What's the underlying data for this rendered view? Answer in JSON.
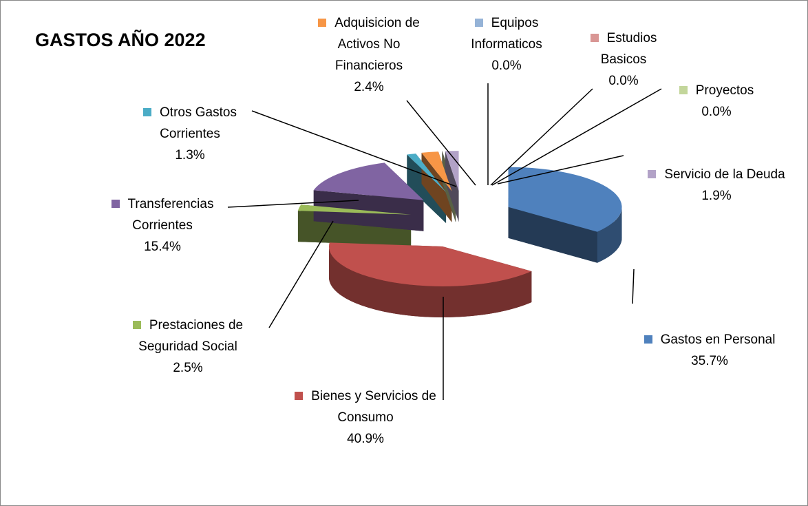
{
  "chart_data": {
    "type": "pie",
    "title": "GASTOS AÑO 2022",
    "categories": [
      "Gastos en Personal",
      "Bienes y Servicios de Consumo",
      "Prestaciones de Seguridad Social",
      "Transferencias Corrientes",
      "Otros Gastos Corrientes",
      "Adquisicion de Activos No Financieros",
      "Equipos Informaticos",
      "Estudios Basicos",
      "Proyectos",
      "Servicio de la Deuda"
    ],
    "values": [
      35.7,
      40.9,
      2.5,
      15.4,
      1.3,
      2.4,
      0.0,
      0.0,
      0.0,
      1.9
    ],
    "value_labels": [
      "35.7%",
      "40.9%",
      "2.5%",
      "15.4%",
      "1.3%",
      "2.4%",
      "0.0%",
      "0.0%",
      "0.0%",
      "1.9%"
    ],
    "colors": [
      "#4f81bd",
      "#c0504d",
      "#9bbb59",
      "#8064a2",
      "#4bacc6",
      "#f79646",
      "#95b3d7",
      "#d99694",
      "#c3d69b",
      "#b2a2c7"
    ]
  }
}
